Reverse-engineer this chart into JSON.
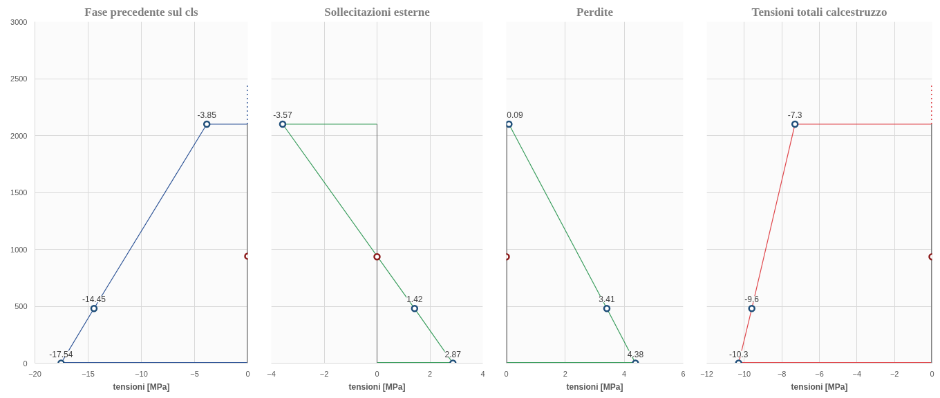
{
  "chart_data": [
    {
      "type": "line",
      "title": "Fase precedente sul cls",
      "xlabel": "tensioni [MPa]",
      "xlim": [
        -20,
        0
      ],
      "xticks": [
        -20,
        -15,
        -10,
        -5,
        0
      ],
      "ylim": [
        0,
        3000
      ],
      "yticks": [
        0,
        500,
        1000,
        1500,
        2000,
        2500,
        3000
      ],
      "grid": true,
      "annotations": [
        {
          "text": "-17.54",
          "x": -17.54,
          "y": 0
        },
        {
          "text": "-14.45",
          "x": -14.45,
          "y": 480
        },
        {
          "text": "-3.85",
          "x": -3.85,
          "y": 2100
        }
      ],
      "series": [
        {
          "color": "#2f5597",
          "x": [
            -17.54,
            0
          ],
          "values": [
            0,
            0
          ]
        },
        {
          "color": "#2f5597",
          "x": [
            -17.54,
            -14.45,
            -3.85
          ],
          "values": [
            0,
            480,
            2100
          ]
        },
        {
          "color": "#2f5597",
          "x": [
            -3.85,
            0
          ],
          "values": [
            2100,
            2100
          ]
        },
        {
          "color": "#7f7f7f",
          "x": [
            0,
            0
          ],
          "values": [
            0,
            2100
          ]
        },
        {
          "color": "#2f5597",
          "line_style": "dotted",
          "x": [
            0,
            0
          ],
          "values": [
            2100,
            2450
          ]
        },
        {
          "type": "scatter",
          "marker": "circle",
          "color": "#1f4e79",
          "x": [
            -17.54,
            -14.45,
            -3.85
          ],
          "values": [
            0,
            480,
            2100
          ]
        },
        {
          "type": "scatter",
          "marker": "circle",
          "color": "#8b1a1a",
          "x": [
            0
          ],
          "values": [
            940
          ]
        }
      ]
    },
    {
      "type": "line",
      "title": "Sollecitazioni esterne",
      "xlabel": "tensioni [MPa]",
      "xlim": [
        -4,
        4
      ],
      "xticks": [
        -4,
        -2,
        0,
        2,
        4
      ],
      "ylim": [
        0,
        3000
      ],
      "yticks": [
        0,
        500,
        1000,
        1500,
        2000,
        2500,
        3000
      ],
      "tick_labels": "x",
      "grid": true,
      "annotations": [
        {
          "text": "2.87",
          "x": 2.87,
          "y": 0
        },
        {
          "text": "1.42",
          "x": 1.42,
          "y": 480
        },
        {
          "text": "-3.57",
          "x": -3.57,
          "y": 2100
        }
      ],
      "series": [
        {
          "color": "#3a9d5d",
          "x": [
            0,
            2.87
          ],
          "values": [
            0,
            0
          ]
        },
        {
          "color": "#3a9d5d",
          "x": [
            -3.57,
            1.42,
            2.87
          ],
          "values": [
            2100,
            480,
            0
          ]
        },
        {
          "color": "#3a9d5d",
          "x": [
            -3.57,
            0
          ],
          "values": [
            2100,
            2100
          ]
        },
        {
          "color": "#7f7f7f",
          "x": [
            0,
            0
          ],
          "values": [
            0,
            2100
          ]
        },
        {
          "type": "scatter",
          "marker": "circle",
          "color": "#1f4e79",
          "x": [
            2.87,
            1.42,
            -3.57
          ],
          "values": [
            0,
            480,
            2100
          ]
        },
        {
          "type": "scatter",
          "marker": "circle",
          "color": "#8b1a1a",
          "x": [
            0
          ],
          "values": [
            935
          ]
        }
      ]
    },
    {
      "type": "line",
      "title": "Perdite",
      "xlabel": "tensioni [MPa]",
      "xlim": [
        0,
        6
      ],
      "xticks": [
        0,
        2,
        4,
        6
      ],
      "ylim": [
        0,
        3000
      ],
      "yticks": [
        0,
        500,
        1000,
        1500,
        2000,
        2500,
        3000
      ],
      "tick_labels": "x",
      "grid": true,
      "annotations": [
        {
          "text": "4.38",
          "x": 4.38,
          "y": 0
        },
        {
          "text": "3.41",
          "x": 3.41,
          "y": 480
        },
        {
          "text": "0.09",
          "x": 0.09,
          "y": 2100
        }
      ],
      "series": [
        {
          "color": "#3a9d5d",
          "x": [
            0,
            4.38
          ],
          "values": [
            0,
            0
          ]
        },
        {
          "color": "#3a9d5d",
          "x": [
            0.09,
            3.41,
            4.38
          ],
          "values": [
            2100,
            480,
            0
          ]
        },
        {
          "color": "#7f7f7f",
          "x": [
            0,
            0
          ],
          "values": [
            0,
            2100
          ]
        },
        {
          "type": "scatter",
          "marker": "circle",
          "color": "#1f4e79",
          "x": [
            4.38,
            3.41,
            0.09
          ],
          "values": [
            0,
            480,
            2100
          ]
        },
        {
          "type": "scatter",
          "marker": "circle",
          "color": "#8b1a1a",
          "x": [
            0
          ],
          "values": [
            935
          ]
        }
      ]
    },
    {
      "type": "line",
      "title": "Tensioni totali calcestruzzo",
      "xlabel": "tensioni [MPa]",
      "xlim": [
        -12,
        0
      ],
      "xticks": [
        -12,
        -10,
        -8,
        -6,
        -4,
        -2,
        0
      ],
      "ylim": [
        0,
        3000
      ],
      "yticks": [
        0,
        500,
        1000,
        1500,
        2000,
        2500,
        3000
      ],
      "tick_labels": "x",
      "grid": true,
      "annotations": [
        {
          "text": "-10.3",
          "x": -10.3,
          "y": 0
        },
        {
          "text": "-9.6",
          "x": -9.6,
          "y": 480
        },
        {
          "text": "-7.3",
          "x": -7.3,
          "y": 2100
        }
      ],
      "series": [
        {
          "color": "#e0474c",
          "x": [
            -10.3,
            0
          ],
          "values": [
            0,
            0
          ]
        },
        {
          "color": "#e0474c",
          "x": [
            -10.3,
            -9.6,
            -7.3
          ],
          "values": [
            0,
            480,
            2100
          ]
        },
        {
          "color": "#e0474c",
          "x": [
            -7.3,
            0
          ],
          "values": [
            2100,
            2100
          ]
        },
        {
          "color": "#7f7f7f",
          "x": [
            0,
            0
          ],
          "values": [
            0,
            2100
          ]
        },
        {
          "color": "#e0474c",
          "line_style": "dotted",
          "x": [
            0,
            0
          ],
          "values": [
            2100,
            2450
          ]
        },
        {
          "type": "scatter",
          "marker": "circle",
          "color": "#1f4e79",
          "x": [
            -10.3,
            -9.6,
            -7.3
          ],
          "values": [
            0,
            480,
            2100
          ]
        },
        {
          "type": "scatter",
          "marker": "circle",
          "color": "#8b1a1a",
          "x": [
            0
          ],
          "values": [
            935
          ]
        }
      ]
    }
  ]
}
